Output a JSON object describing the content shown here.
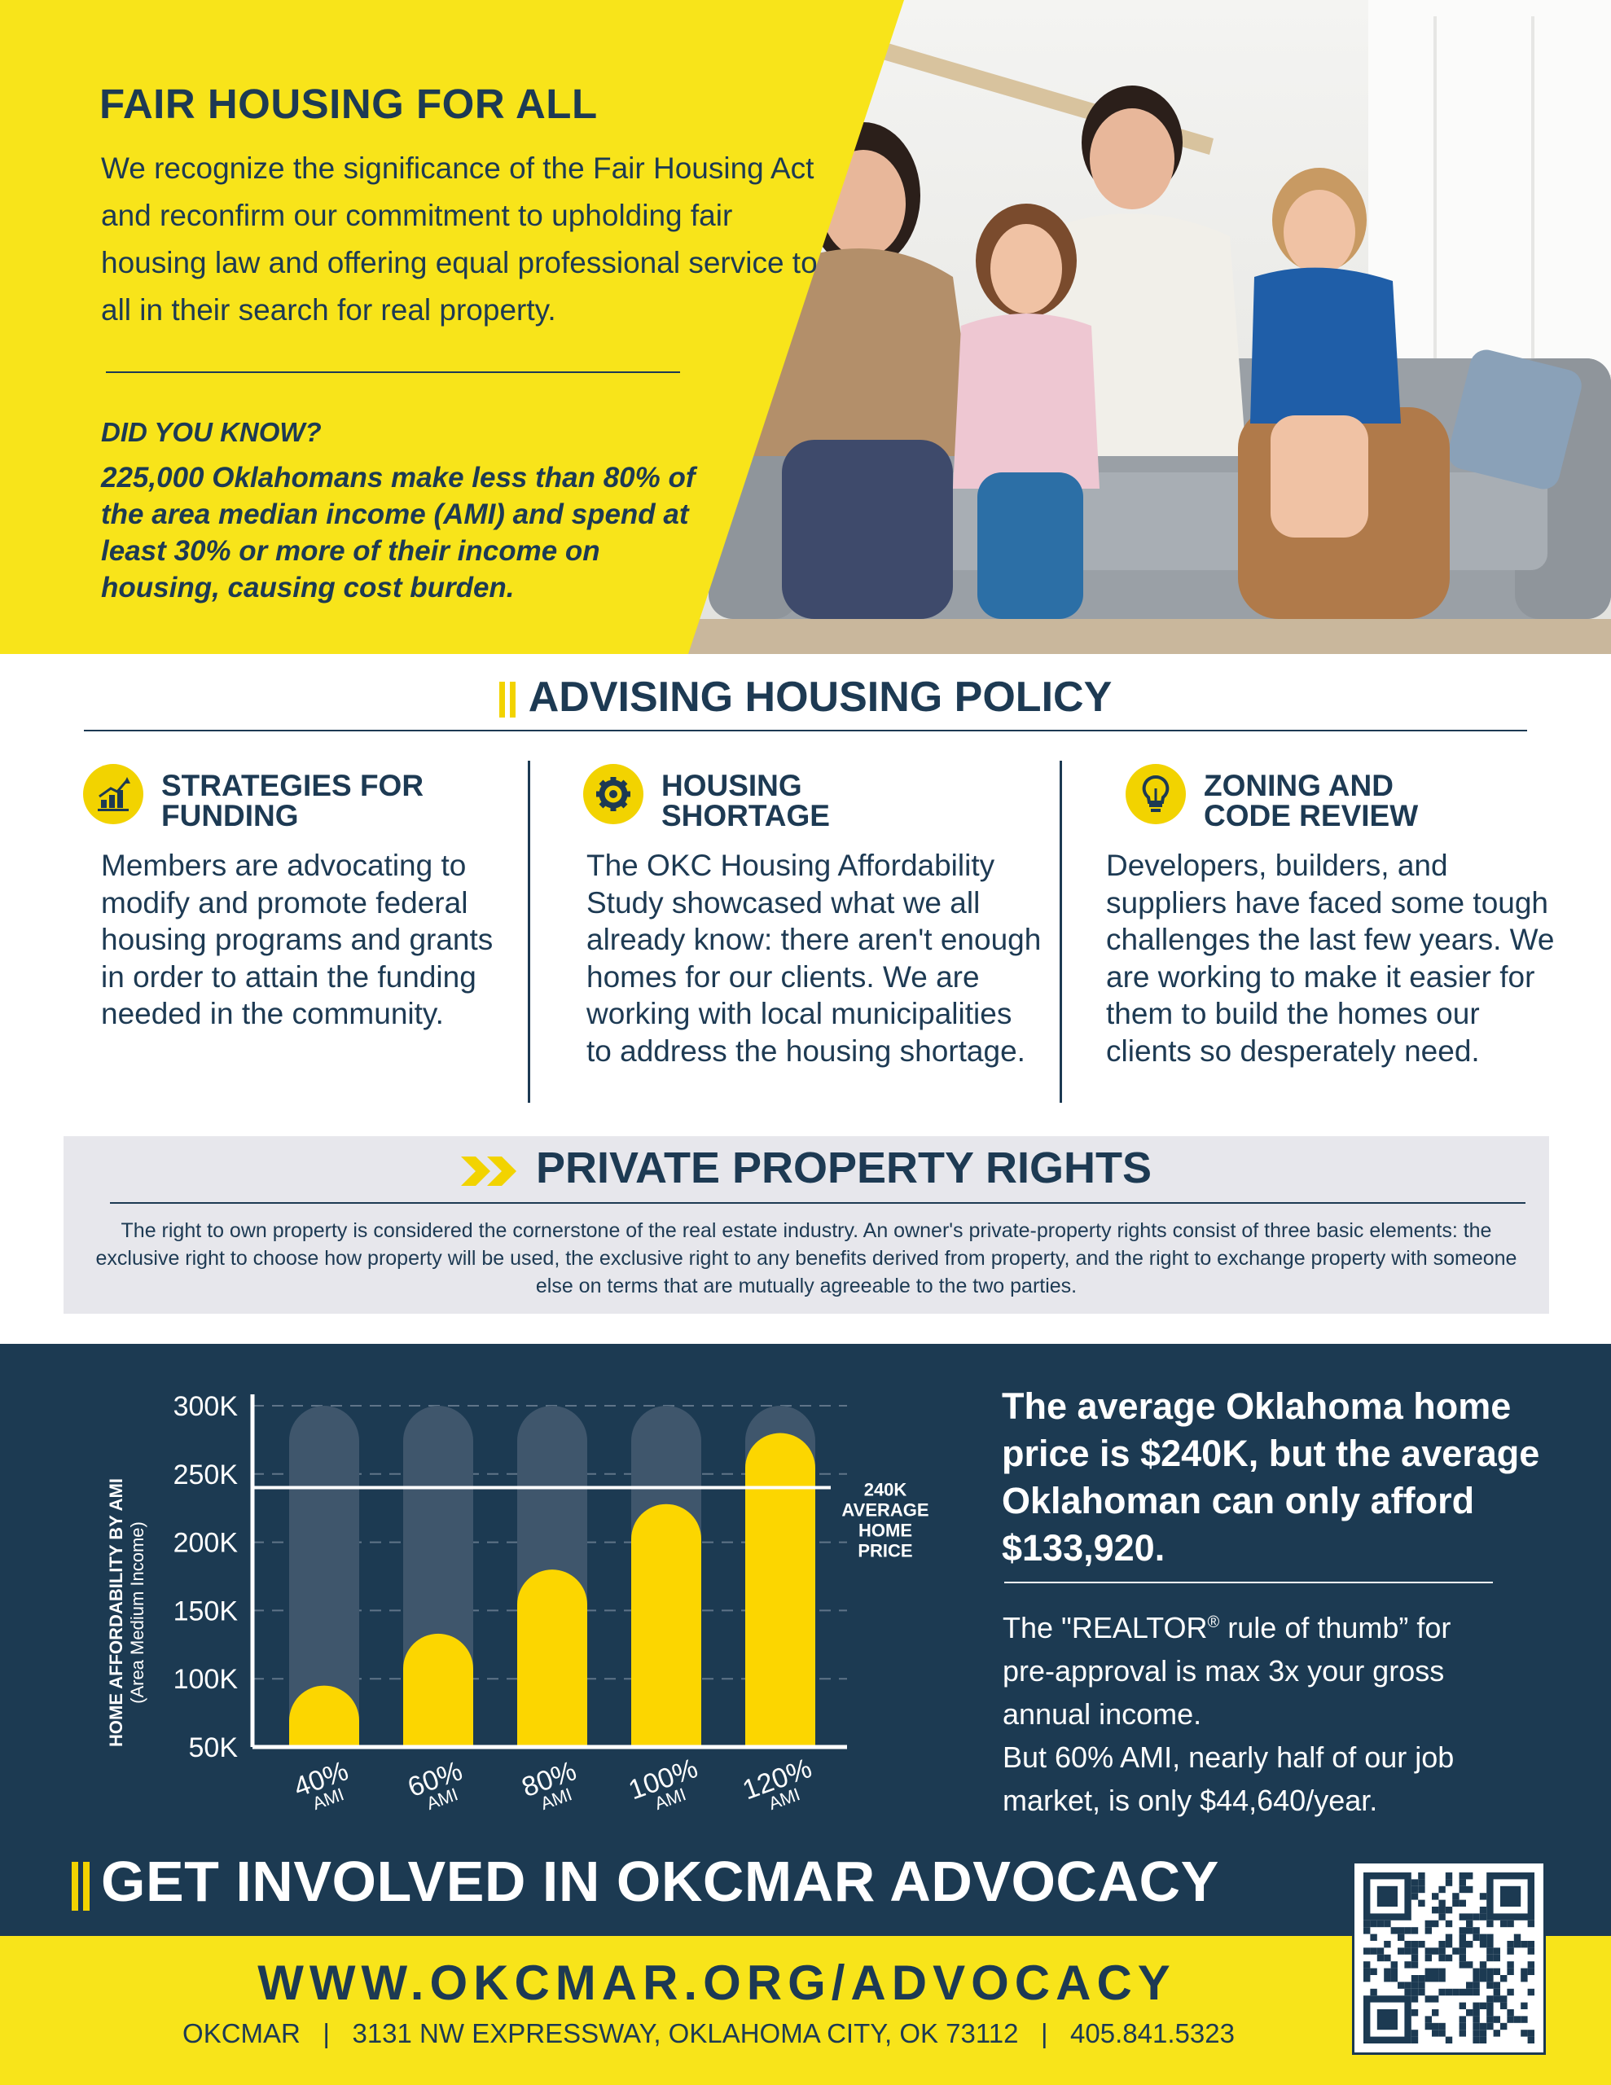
{
  "hero": {
    "title": "FAIR HOUSING FOR ALL",
    "intro": "We recognize the significance of the Fair Housing Act and reconfirm our commitment to upholding fair housing law and offering equal professional service to all in their search for real property.",
    "did_you_know_heading": "DID YOU KNOW?",
    "did_you_know_body": "225,000 Oklahomans make less than 80% of the area median income (AMI) and spend at least 30% or more of their income on housing, causing cost burden."
  },
  "advising": {
    "heading": "ADVISING HOUSING POLICY",
    "columns": [
      {
        "icon": "growth-chart-icon",
        "title_line1": "STRATEGIES FOR",
        "title_line2": "FUNDING",
        "body": "Members are advocating to modify and promote federal housing programs and grants in order to attain the funding needed in the community."
      },
      {
        "icon": "gear-icon",
        "title_line1": "HOUSING",
        "title_line2": "SHORTAGE",
        "body": "The OKC Housing Affordability Study showcased what we all already know: there aren't enough homes for our clients. We are working with local municipalities to address the housing shortage."
      },
      {
        "icon": "lightbulb-icon",
        "title_line1": "ZONING AND",
        "title_line2": "CODE REVIEW",
        "body": "Developers, builders, and suppliers have faced some tough challenges the last few years. We are working to make it easier for them to build the homes our clients so desperately need."
      }
    ]
  },
  "private_property": {
    "heading": "PRIVATE PROPERTY RIGHTS",
    "body": "The right to own property is considered the cornerstone of the real estate industry. An owner's private-property rights consist of three basic elements: the exclusive right to choose how property will be used, the exclusive right to any benefits derived from property, and the right to exchange property with someone else on terms that are mutually agreeable to the two parties."
  },
  "chart_data": {
    "type": "bar",
    "ylabel": "HOME AFFORDABILITY BY AMI",
    "ylabel_sub": "(Area Medium Income)",
    "ylim": [
      50000,
      300000
    ],
    "yticks": [
      {
        "value": 300000,
        "label": "300K"
      },
      {
        "value": 250000,
        "label": "250K"
      },
      {
        "value": 200000,
        "label": "200K"
      },
      {
        "value": 150000,
        "label": "150K"
      },
      {
        "value": 100000,
        "label": "100K"
      },
      {
        "value": 50000,
        "label": "50K"
      }
    ],
    "categories": [
      {
        "label": "40%",
        "sub": "AMI"
      },
      {
        "label": "60%",
        "sub": "AMI"
      },
      {
        "label": "80%",
        "sub": "AMI"
      },
      {
        "label": "100%",
        "sub": "AMI"
      },
      {
        "label": "120%",
        "sub": "AMI"
      }
    ],
    "values": [
      95000,
      133000,
      180000,
      228000,
      280000
    ],
    "reference_line": {
      "value": 240000,
      "label_lines": [
        "240K",
        "AVERAGE",
        "HOME",
        "PRICE"
      ]
    },
    "grid": true,
    "colors": {
      "bar": "#fcd600",
      "track": "#3f566c",
      "background": "#1c3a52",
      "text": "#ffffff"
    }
  },
  "stats": {
    "headline": "The average Oklahoma home price is $240K, but the average Oklahoman can only afford $133,920.",
    "body_line1": "The \"REALTOR",
    "registered": "®",
    "body_line1b": " rule of thumb” for pre-approval is max 3x your gross annual income.",
    "body_line2": "But 60% AMI, nearly half of our job market, is only $44,640/year."
  },
  "footer": {
    "cta": "GET INVOLVED IN OKCMAR ADVOCACY",
    "url": "WWW.OKCMAR.ORG/ADVOCACY",
    "address": "OKCMAR   |   3131 NW EXPRESSWAY, OKLAHOMA CITY, OK 73112   |   405.841.5323",
    "qr_icon": "qr-code-icon"
  },
  "colors": {
    "navy": "#1d3a53",
    "yellow": "#f8e41a",
    "dark": "#1c3a52",
    "grey_box": "#e7e7ec"
  }
}
